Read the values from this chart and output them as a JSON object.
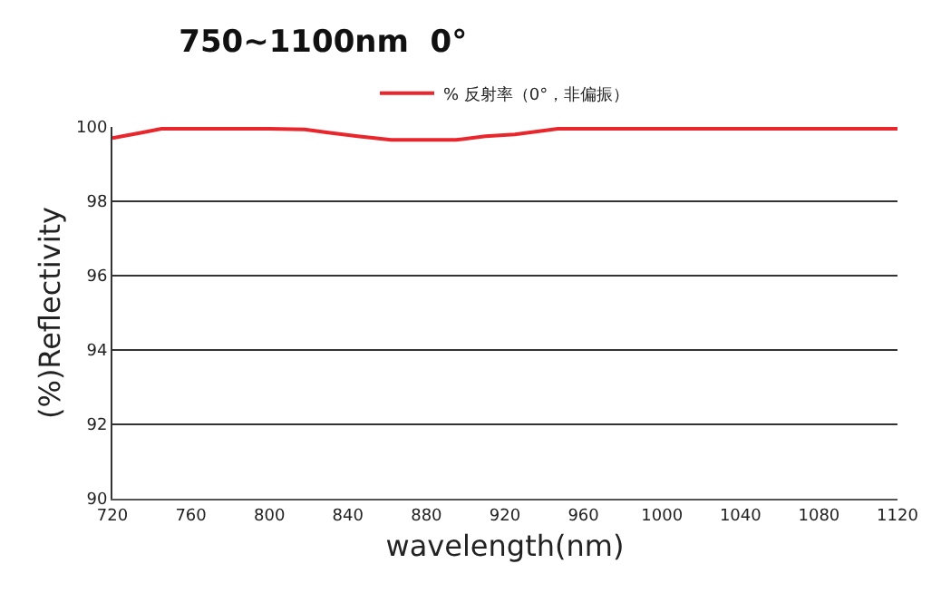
{
  "chart_data": {
    "type": "line",
    "title": "750~1100nm  0°",
    "xlabel": "wavelength(nm)",
    "ylabel": "(%)Reflectivity",
    "series": [
      {
        "name": "% 反射率（0°，非偏振）",
        "color": "#e8262b",
        "x": [
          720,
          725,
          735,
          745,
          760,
          800,
          818,
          830,
          845,
          862,
          880,
          895,
          910,
          925,
          940,
          947,
          980,
          1040,
          1120
        ],
        "values": [
          99.7,
          99.75,
          99.85,
          99.95,
          99.95,
          99.95,
          99.93,
          99.85,
          99.75,
          99.65,
          99.65,
          99.65,
          99.75,
          99.8,
          99.9,
          99.95,
          99.95,
          99.95,
          99.95
        ]
      }
    ],
    "xlim": [
      720,
      1120
    ],
    "xticks": [
      720,
      760,
      800,
      840,
      880,
      920,
      960,
      1000,
      1040,
      1080,
      1120
    ],
    "ylim": [
      90,
      100
    ],
    "yticks": [
      90,
      92,
      94,
      96,
      98,
      100
    ],
    "grid": "y",
    "legend": "top",
    "marker": "none",
    "line_style": "solid"
  }
}
